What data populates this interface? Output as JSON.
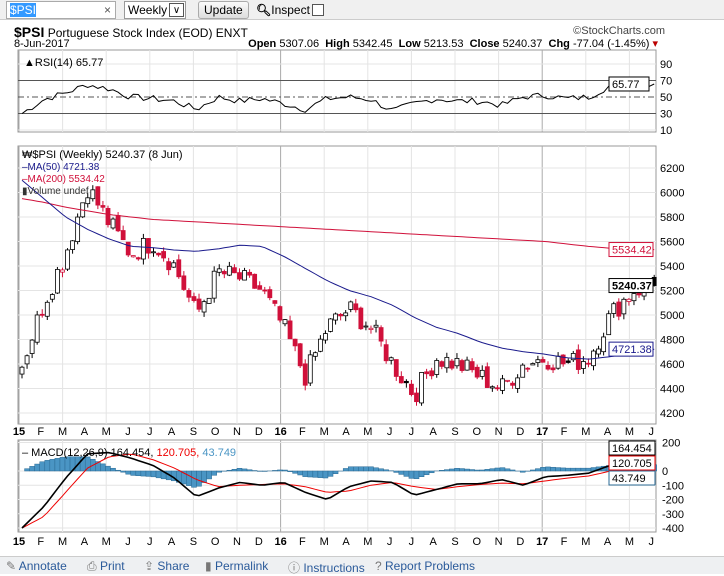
{
  "toolbar": {
    "symbol": "$PSI",
    "period": "Weekly",
    "update": "Update",
    "inspect": "Inspect"
  },
  "header": {
    "symbol": "$PSI",
    "name": "Portuguese Stock Index (EOD)",
    "exchange": "ENXT",
    "copyright": "©StockCharts.com",
    "date": "8-Jun-2017",
    "open_label": "Open",
    "open": "5307.06",
    "high_label": "High",
    "high": "5342.45",
    "low_label": "Low",
    "low": "5213.53",
    "close_label": "Close",
    "close": "5240.37",
    "chg_label": "Chg",
    "chg": "-77.04 (-1.45%)"
  },
  "rsi": {
    "label": "RSI(14) 65.77",
    "value_tag": "65.77",
    "ticks": [
      "90",
      "70",
      "50",
      "30",
      "10"
    ]
  },
  "price": {
    "legend": "$PSI (Weekly) 5240.37 (8 Jun)",
    "ma50": "MA(50) 4721.38",
    "ma200": "MA(200) 5534.42",
    "volume": "Volume undef",
    "ticks": [
      "6200",
      "6000",
      "5800",
      "5600",
      "5400",
      "5200",
      "5000",
      "4800",
      "4600",
      "4400",
      "4200"
    ],
    "tag_close": "5240.37",
    "tag_ma50": "4721.38",
    "tag_ma200": "5534.42"
  },
  "macd": {
    "label": "MACD(12,26,9)",
    "v1": "164.454,",
    "v2": "120.705,",
    "v3": "43.749",
    "tag1": "164.454",
    "tag2": "120.705",
    "tag3": "43.749",
    "ticks": [
      "200",
      "0",
      "-100",
      "-200",
      "-300",
      "-400"
    ]
  },
  "months": [
    "15",
    "F",
    "M",
    "A",
    "M",
    "J",
    "J",
    "A",
    "S",
    "O",
    "N",
    "D",
    "16",
    "F",
    "M",
    "A",
    "M",
    "J",
    "J",
    "A",
    "S",
    "O",
    "N",
    "D",
    "17",
    "F",
    "M",
    "A",
    "M",
    "J"
  ],
  "footer": [
    {
      "icon": "pencil-icon",
      "label": "Annotate"
    },
    {
      "icon": "printer-icon",
      "label": "Print"
    },
    {
      "icon": "share-icon",
      "label": "Share"
    },
    {
      "icon": "bookmark-icon",
      "label": "Permalink"
    },
    {
      "icon": "info-icon",
      "label": "Instructions"
    },
    {
      "icon": "help-icon",
      "label": "Report Problems"
    }
  ],
  "colors": {
    "up": "#000000",
    "down": "#d0103a",
    "ma50": "#1a1a8c",
    "ma200": "#d0103a",
    "hist": "#4a95c4"
  },
  "chart_data": {
    "type": "candlestick",
    "price_close_monthly": [
      4600,
      5100,
      5500,
      6050,
      5750,
      5500,
      5600,
      5400,
      5000,
      5350,
      5300,
      5200,
      4900,
      4500,
      4900,
      5050,
      4900,
      4600,
      4350,
      4650,
      4600,
      4500,
      4400,
      4600,
      4650,
      4600,
      4650,
      5000,
      5200,
      5240
    ],
    "ma200_monthly": [
      5950,
      5920,
      5880,
      5850,
      5820,
      5800,
      5780,
      5770,
      5760,
      5750,
      5740,
      5730,
      5720,
      5710,
      5700,
      5690,
      5680,
      5670,
      5660,
      5650,
      5640,
      5630,
      5620,
      5610,
      5600,
      5580,
      5560,
      5545,
      5540,
      5534
    ],
    "ma50_monthly": [
      6100,
      5950,
      5800,
      5700,
      5620,
      5560,
      5550,
      5530,
      5520,
      5540,
      5570,
      5560,
      5480,
      5380,
      5280,
      5200,
      5150,
      5080,
      4980,
      4900,
      4850,
      4780,
      4730,
      4700,
      4680,
      4650,
      4640,
      4660,
      4690,
      4721
    ],
    "rsi_monthly": [
      30,
      47,
      55,
      65,
      60,
      50,
      48,
      45,
      35,
      50,
      45,
      48,
      42,
      35,
      48,
      50,
      47,
      33,
      42,
      48,
      45,
      45,
      40,
      50,
      52,
      48,
      50,
      64,
      68,
      65.77
    ],
    "macd_monthly": [
      -400,
      -250,
      -50,
      120,
      130,
      90,
      40,
      -50,
      -180,
      -120,
      -80,
      -100,
      -80,
      -150,
      -200,
      -110,
      -70,
      -80,
      -170,
      -130,
      -90,
      -90,
      -60,
      -100,
      -40,
      -30,
      -15,
      40,
      110,
      164.454
    ],
    "signal_monthly": [
      -400,
      -320,
      -150,
      20,
      100,
      120,
      80,
      20,
      -60,
      -110,
      -100,
      -95,
      -90,
      -110,
      -150,
      -140,
      -100,
      -80,
      -110,
      -130,
      -110,
      -95,
      -85,
      -90,
      -70,
      -50,
      -35,
      0,
      60,
      120.705
    ]
  }
}
